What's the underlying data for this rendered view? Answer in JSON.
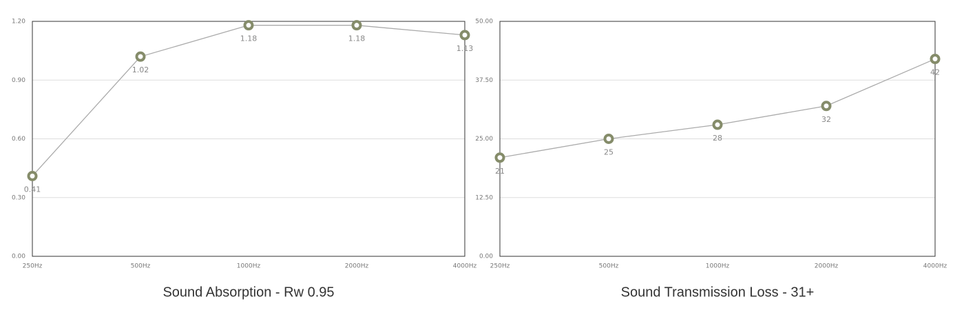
{
  "chart_data": [
    {
      "type": "line",
      "title": "Sound Absorption - Rw 0.95",
      "categories": [
        "250Hz",
        "500Hz",
        "1000Hz",
        "2000Hz",
        "4000Hz"
      ],
      "values": [
        0.41,
        1.02,
        1.18,
        1.18,
        1.13
      ],
      "color": "#858c6a",
      "ylim": [
        0,
        1.2
      ],
      "yticks": [
        {
          "value": 0,
          "label": "0.00"
        },
        {
          "value": 0.3,
          "label": "0.30"
        },
        {
          "value": 0.6,
          "label": "0.60"
        },
        {
          "value": 0.9,
          "label": "0.90"
        },
        {
          "value": 1.2,
          "label": "1.20"
        }
      ],
      "grid": true
    },
    {
      "type": "line",
      "title": "Sound Transmission Loss - 31+",
      "categories": [
        "250Hz",
        "500Hz",
        "1000Hz",
        "2000Hz",
        "4000Hz"
      ],
      "values": [
        21,
        25,
        28,
        32,
        42
      ],
      "color": "#858c6a",
      "ylim": [
        0,
        50
      ],
      "yticks": [
        {
          "value": 0,
          "label": "0.00"
        },
        {
          "value": 12.5,
          "label": "12.50"
        },
        {
          "value": 25,
          "label": "25.00"
        },
        {
          "value": 37.5,
          "label": "37.50"
        },
        {
          "value": 50,
          "label": "50.00"
        }
      ],
      "grid": true
    }
  ]
}
